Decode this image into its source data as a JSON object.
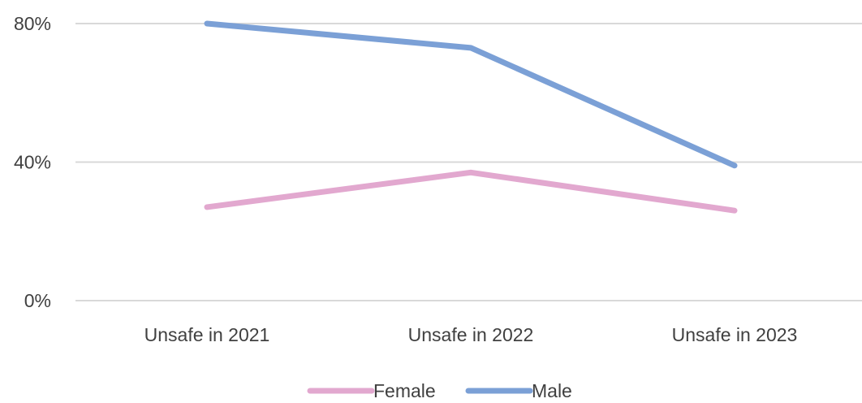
{
  "chart_data": {
    "type": "line",
    "categories": [
      "Unsafe in 2021",
      "Unsafe in 2022",
      "Unsafe in 2023"
    ],
    "series": [
      {
        "name": "Female",
        "values": [
          27,
          37,
          26
        ],
        "color": "#E2A8CF"
      },
      {
        "name": "Male",
        "values": [
          80,
          73,
          39
        ],
        "color": "#7BA0D6"
      }
    ],
    "ylim": [
      0,
      80
    ],
    "yticks": [
      {
        "value": 0,
        "label": "0%"
      },
      {
        "value": 40,
        "label": "40%"
      },
      {
        "value": 80,
        "label": "80%"
      }
    ],
    "grid": true,
    "gridColor": "#D9D9D9",
    "legend": "bottom"
  }
}
